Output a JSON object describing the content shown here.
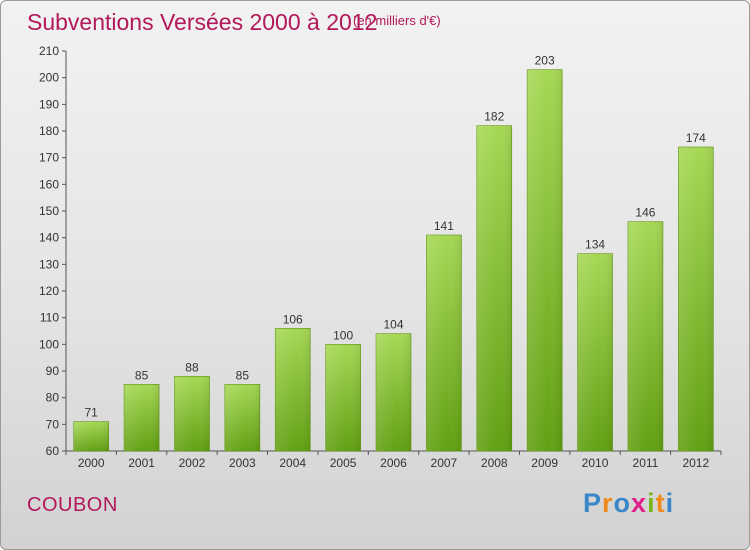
{
  "title": "Subventions Versées 2000 à 2012",
  "unit_note": "(en milliers d'€)",
  "commune": "COUBON",
  "brand": {
    "name": "Proxiti",
    "letters": [
      "P",
      "r",
      "o",
      "x",
      "i",
      "t",
      "i"
    ],
    "letter_colors": [
      "#3a86c8",
      "#f08a1c",
      "#3a86c8",
      "#e0218a",
      "#7ab51d",
      "#f08a1c",
      "#3a86c8"
    ]
  },
  "colors": {
    "title": "#b2185a",
    "bar_light": "#a6d855",
    "bar_dark": "#62a012"
  },
  "chart_data": {
    "type": "bar",
    "categories": [
      "2000",
      "2001",
      "2002",
      "2003",
      "2004",
      "2005",
      "2006",
      "2007",
      "2008",
      "2009",
      "2010",
      "2011",
      "2012"
    ],
    "values": [
      71,
      85,
      88,
      85,
      106,
      100,
      104,
      141,
      182,
      203,
      134,
      146,
      174
    ],
    "ylim": [
      60,
      210
    ],
    "yticks": [
      60,
      70,
      80,
      90,
      100,
      110,
      120,
      130,
      140,
      150,
      160,
      170,
      180,
      190,
      200,
      210
    ],
    "grid": false,
    "legend": "none"
  }
}
